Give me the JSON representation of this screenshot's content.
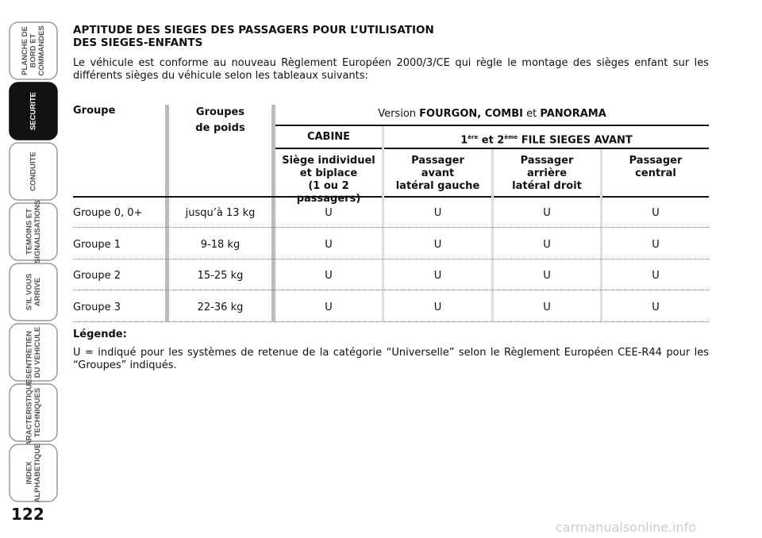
{
  "side_tabs": [
    {
      "lines": [
        "PLANCHE DE",
        "BORD ET",
        "COMMANDES"
      ]
    },
    {
      "lines": [
        "SECURITE"
      ],
      "active": true
    },
    {
      "lines": [
        "CONDUITE"
      ]
    },
    {
      "lines": [
        "TEMOINS ET",
        "SIGNALISATIONS"
      ]
    },
    {
      "lines": [
        "S'IL VOUS",
        "ARRIVE"
      ]
    },
    {
      "lines": [
        "ENTRETIEN",
        "DU VEHICULE"
      ]
    },
    {
      "lines": [
        "CARACTERISTIQUES",
        "TECHNIQUES"
      ]
    },
    {
      "lines": [
        "INDEX",
        "ALPHABETIQUE"
      ]
    }
  ],
  "page_number": "122",
  "heading": [
    "APTITUDE DES SIEGES DES PASSAGERS POUR L’UTILISATION",
    "DES SIEGES-ENFANTS"
  ],
  "intro": "Le véhicule est conforme au nouveau Règlement Européen 2000/3/CE qui règle le montage des sièges enfant sur les différents sièges du véhicule selon les tableaux suivants:",
  "table": {
    "group_header": "Groupe",
    "weight_header": [
      "Groupes",
      "de poids"
    ],
    "version_header": [
      "Version",
      "FOURGON, COMBI",
      "et",
      "PANORAMA"
    ],
    "cabin_header": "CABINE",
    "rows_header": [
      "1",
      "ère",
      "et 2",
      "ème",
      "FILE SIEGES AVANT"
    ],
    "seat_headers": [
      [
        "Siège individuel",
        "et biplace",
        "(1 ou 2 passagers)"
      ],
      [
        "Passager",
        "avant",
        "latéral gauche"
      ],
      [
        "Passager",
        "arrière",
        "latéral droit"
      ],
      [
        "Passager",
        "central"
      ]
    ],
    "rows": [
      [
        "Groupe 0, 0+",
        "jusqu’à 13 kg",
        "U",
        "U",
        "U",
        "U"
      ],
      [
        "Groupe 1",
        "9-18 kg",
        "U",
        "U",
        "U",
        "U"
      ],
      [
        "Groupe 2",
        "15-25 kg",
        "U",
        "U",
        "U",
        "U"
      ],
      [
        "Groupe 3",
        "22-36 kg",
        "U",
        "U",
        "U",
        "U"
      ]
    ]
  },
  "legend_title": "Légende:",
  "legend_text": "U = indiqué pour les systèmes de retenue de la catégorie “Universelle” selon le Règlement Européen CEE-R44 pour les “Groupes” indiqués.",
  "watermark": "carmanualsonline.info"
}
